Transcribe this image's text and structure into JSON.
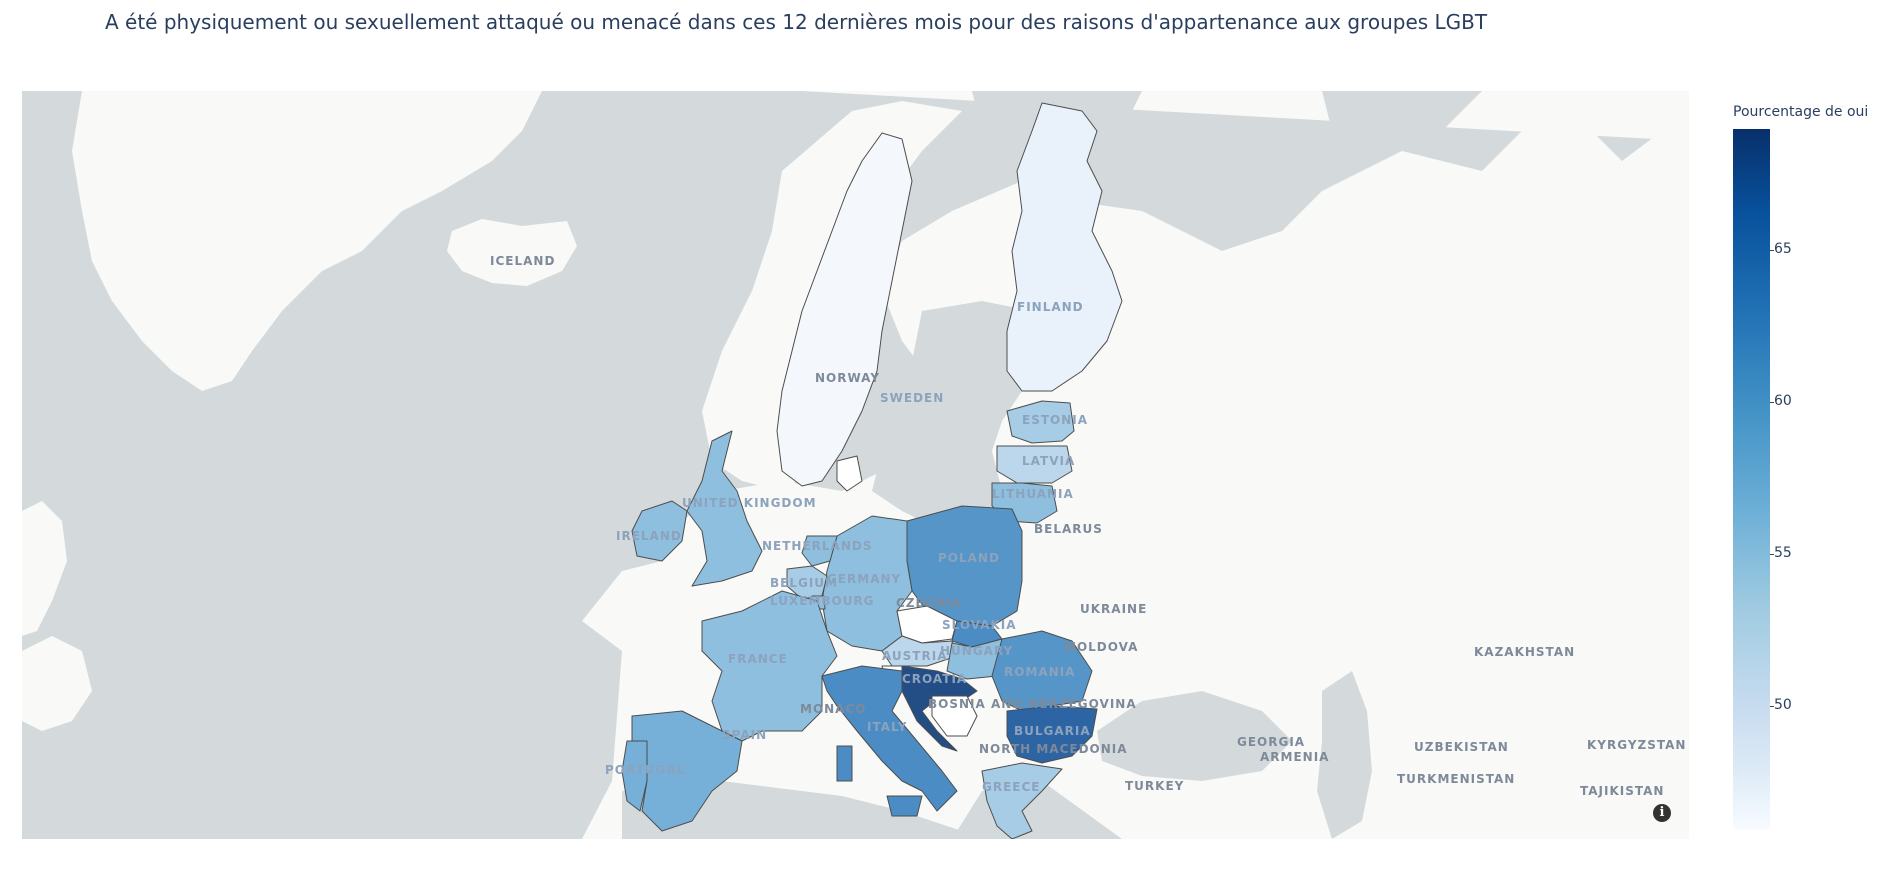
{
  "title": "A été physiquement ou sexuellement attaqué ou menacé dans ces 12 dernières mois pour des raisons d'appartenance aux groupes LGBT",
  "legend": {
    "title": "Pourcentage de oui",
    "ticks": [
      "65",
      "60",
      "55",
      "50"
    ],
    "colorscale": [
      "#f7fbff",
      "#deebf7",
      "#c6dbef",
      "#9ecae1",
      "#6baed6",
      "#4292c6",
      "#2171b5",
      "#08519c",
      "#08306b"
    ]
  },
  "map_labels": {
    "iceland": "ICELAND",
    "norway": "NORWAY",
    "sweden": "SWEDEN",
    "finland": "FINLAND",
    "estonia": "ESTONIA",
    "latvia": "LATVIA",
    "lithuania": "LITHUANIA",
    "belarus": "BELARUS",
    "ukraine": "UKRAINE",
    "poland": "POLAND",
    "germany": "GERMANY",
    "netherlands": "NETHERLANDS",
    "belgium": "BELGIUM",
    "luxembourg": "LUXEMBOURG",
    "united_kingdom": "UNITED KINGDOM",
    "ireland": "IRELAND",
    "france": "FRANCE",
    "czechia": "CZECHIA",
    "slovakia": "SLOVAKIA",
    "austria": "AUSTRIA",
    "hungary": "HUNGARY",
    "moldova": "MOLDOVA",
    "romania": "ROMANIA",
    "croatia": "CROATIA",
    "bosnia": "BOSNIA AND HERZEGOVINA",
    "bulgaria": "BULGARIA",
    "north_macedonia": "NORTH MACEDONIA",
    "greece": "GREECE",
    "italy": "ITALY",
    "spain": "SPAIN",
    "portugal": "PORTUGAL",
    "monaco": "MONACO",
    "turkey": "TURKEY",
    "georgia": "GEORGIA",
    "armenia": "ARMENIA",
    "kazakhstan": "KAZAKHSTAN",
    "uzbekistan": "UZBEKISTAN",
    "kyrgyzstan": "KYRGYZSTAN",
    "turkmenistan": "TURKMENISTAN",
    "tajikistan": "TAJIKISTAN"
  },
  "info_glyph": "i",
  "colors": {
    "sea": "#d4dadc",
    "land": "#f9f9f8",
    "no_data": "#d4dadc",
    "border": "#4d4d4d"
  }
}
